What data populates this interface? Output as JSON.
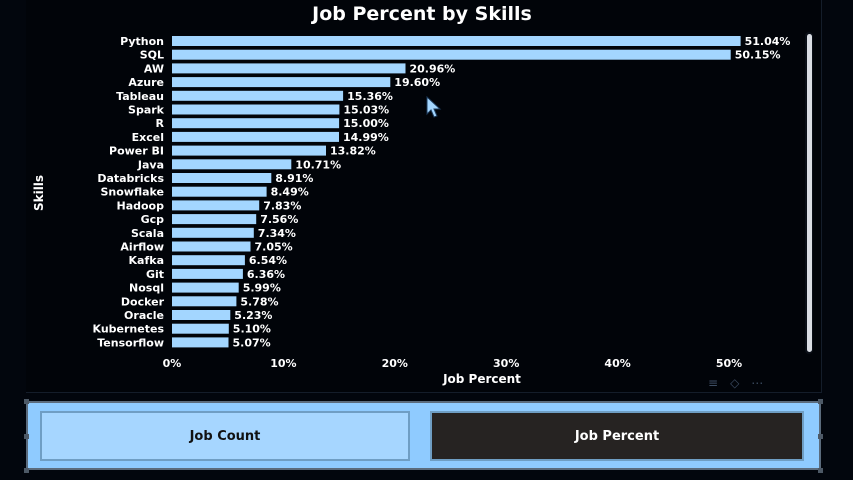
{
  "chart_data": {
    "type": "bar",
    "orientation": "horizontal",
    "title": "Job Percent by Skills",
    "xlabel": "Job Percent",
    "ylabel": "Skills",
    "xlim": [
      0,
      0.57
    ],
    "xticks": [
      0,
      0.1,
      0.2,
      0.3,
      0.4,
      0.5
    ],
    "xtick_labels": [
      "0%",
      "10%",
      "20%",
      "30%",
      "40%",
      "50%"
    ],
    "categories": [
      "Python",
      "SQL",
      "AW",
      "Azure",
      "Tableau",
      "Spark",
      "R",
      "Excel",
      "Power BI",
      "Java",
      "Databricks",
      "Snowflake",
      "Hadoop",
      "Gcp",
      "Scala",
      "Airflow",
      "Kafka",
      "Git",
      "Nosql",
      "Docker",
      "Oracle",
      "Kubernetes",
      "Tensorflow"
    ],
    "values": [
      0.5104,
      0.5015,
      0.2096,
      0.196,
      0.1536,
      0.1503,
      0.15,
      0.1499,
      0.1382,
      0.1071,
      0.0891,
      0.0849,
      0.0783,
      0.0756,
      0.0734,
      0.0705,
      0.0654,
      0.0636,
      0.0599,
      0.0578,
      0.0523,
      0.051,
      0.0507
    ],
    "value_labels": [
      "51.04%",
      "50.15%",
      "20.96%",
      "19.60%",
      "15.36%",
      "15.03%",
      "15.00%",
      "14.99%",
      "13.82%",
      "10.71%",
      "8.91%",
      "8.49%",
      "7.83%",
      "7.56%",
      "7.34%",
      "7.05%",
      "6.54%",
      "6.36%",
      "5.99%",
      "5.78%",
      "5.23%",
      "5.10%",
      "5.07%"
    ],
    "bar_color": "#a3d6ff",
    "grid": false,
    "legend": "none"
  },
  "toggle": {
    "job_count_label": "Job Count",
    "job_percent_label": "Job Percent",
    "active": "Job Percent"
  },
  "colors": {
    "background": "#02060d",
    "bar": "#a3d6ff",
    "toggle_bg": "#8fcbff",
    "active_button": "#262322"
  }
}
